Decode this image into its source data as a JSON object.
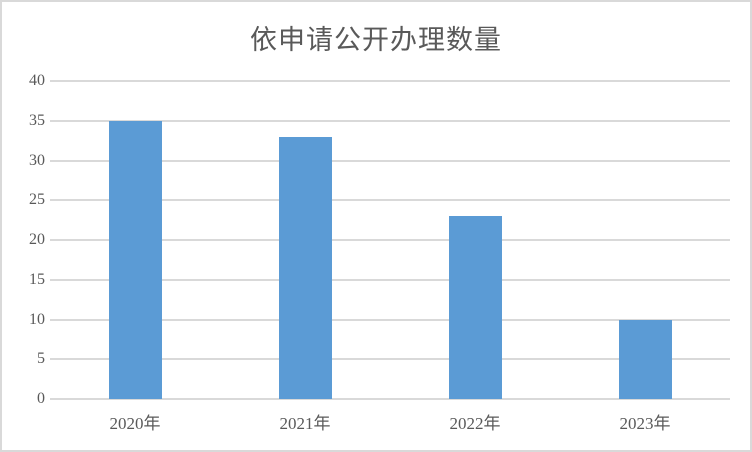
{
  "chart_data": {
    "type": "bar",
    "title": "依申请公开办理数量",
    "categories": [
      "2020年",
      "2021年",
      "2022年",
      "2023年"
    ],
    "values": [
      35,
      33,
      23,
      10
    ],
    "xlabel": "",
    "ylabel": "",
    "ylim": [
      0,
      40
    ],
    "yticks": [
      0,
      5,
      10,
      15,
      20,
      25,
      30,
      35,
      40
    ],
    "grid": "horizontal",
    "legend": "none",
    "bar_color": "#5B9BD5",
    "gridline_color": "#D9D9D9",
    "text_color": "#595959",
    "background_color": "#FFFFFF",
    "border_color": "#D9D9D9"
  }
}
